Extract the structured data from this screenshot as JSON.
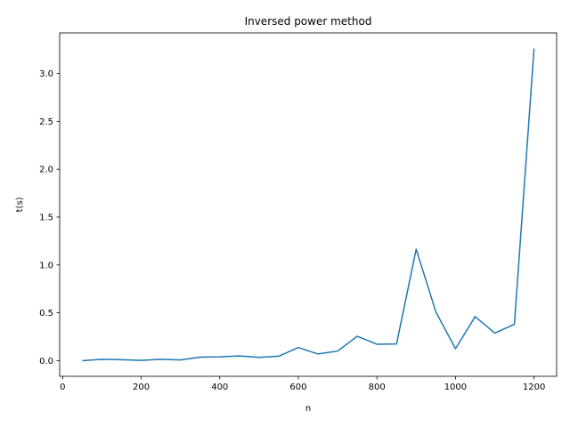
{
  "chart_data": {
    "type": "line",
    "title": "Inversed power method",
    "xlabel": "n",
    "ylabel": "t(s)",
    "xlim": [
      -7.5,
      1257.5
    ],
    "ylim": [
      -0.163,
      3.423
    ],
    "xticks": [
      0,
      200,
      400,
      600,
      800,
      1000,
      1200
    ],
    "yticks": [
      0.0,
      0.5,
      1.0,
      1.5,
      2.0,
      2.5,
      3.0
    ],
    "xtick_labels": [
      "0",
      "200",
      "400",
      "600",
      "800",
      "1000",
      "1200"
    ],
    "ytick_labels": [
      "0.0",
      "0.5",
      "1.0",
      "1.5",
      "2.0",
      "2.5",
      "3.0"
    ],
    "grid": false,
    "series": [
      {
        "color": "#1f77b4",
        "x": [
          50,
          100,
          150,
          200,
          250,
          300,
          350,
          400,
          450,
          500,
          550,
          600,
          650,
          700,
          750,
          800,
          850,
          900,
          950,
          1000,
          1050,
          1100,
          1150,
          1200
        ],
        "y": [
          0.0,
          0.015,
          0.01,
          0.003,
          0.015,
          0.008,
          0.037,
          0.04,
          0.05,
          0.035,
          0.047,
          0.137,
          0.07,
          0.1,
          0.255,
          0.172,
          0.175,
          1.165,
          0.51,
          0.125,
          0.46,
          0.288,
          0.38,
          3.26
        ]
      }
    ]
  }
}
